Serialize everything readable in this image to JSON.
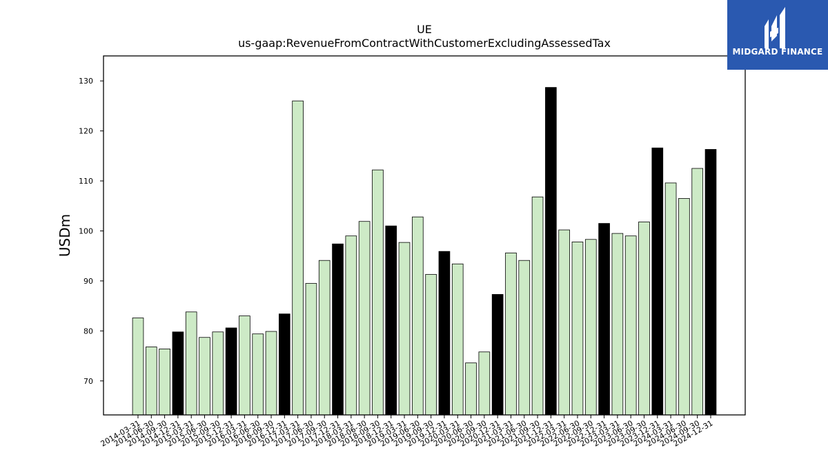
{
  "brand": {
    "name": "MIDGARD FINANCE",
    "bg_color": "#2a59b0",
    "icon": "midgard-logo-mark"
  },
  "chart_data": {
    "type": "bar",
    "title": "UE",
    "subtitle": "us-gaap:RevenueFromContractWithCustomerExcludingAssessedTax",
    "ylabel": "USDm",
    "xlabel": "",
    "ylim": [
      63.2,
      135
    ],
    "yticks": [
      70,
      80,
      90,
      100,
      110,
      120,
      130
    ],
    "grid": false,
    "legend": "none",
    "colors": {
      "quarter": "#cdeac6",
      "year_end": "#000000",
      "edge": "#000000"
    },
    "categories": [
      "2014-03-31",
      "2014-06-30",
      "2014-09-30",
      "2014-12-31",
      "2015-03-31",
      "2015-06-30",
      "2015-09-30",
      "2015-12-31",
      "2016-03-31",
      "2016-06-30",
      "2016-09-30",
      "2016-12-31",
      "2017-03-31",
      "2017-06-30",
      "2017-09-30",
      "2017-12-31",
      "2018-03-31",
      "2018-06-30",
      "2018-09-30",
      "2018-12-31",
      "2019-03-31",
      "2019-06-30",
      "2019-09-30",
      "2019-12-31",
      "2020-03-31",
      "2020-06-30",
      "2020-09-30",
      "2020-12-31",
      "2021-03-31",
      "2021-06-30",
      "2021-09-30",
      "2021-12-31",
      "2022-03-31",
      "2022-06-30",
      "2022-09-30",
      "2022-12-31",
      "2023-03-31",
      "2023-06-30",
      "2023-09-30",
      "2023-12-31",
      "2024-03-31",
      "2024-06-30",
      "2024-09-30",
      "2024-12-31"
    ],
    "values": [
      82.6,
      76.8,
      76.4,
      79.8,
      83.8,
      78.7,
      79.8,
      80.6,
      83.0,
      79.4,
      79.9,
      83.4,
      126.0,
      89.5,
      94.1,
      97.4,
      99.0,
      101.9,
      112.2,
      101.0,
      97.7,
      102.8,
      91.3,
      95.9,
      93.4,
      73.6,
      75.8,
      87.3,
      95.6,
      94.1,
      106.8,
      128.7,
      100.2,
      97.8,
      98.3,
      101.5,
      99.5,
      99.0,
      101.8,
      116.6,
      109.6,
      106.5,
      112.5,
      116.3
    ],
    "highlight": [
      false,
      false,
      false,
      true,
      false,
      false,
      false,
      true,
      false,
      false,
      false,
      true,
      false,
      false,
      false,
      true,
      false,
      false,
      false,
      true,
      false,
      false,
      false,
      true,
      false,
      false,
      false,
      true,
      false,
      false,
      false,
      true,
      false,
      false,
      false,
      true,
      false,
      false,
      false,
      true,
      false,
      false,
      false,
      true
    ]
  }
}
